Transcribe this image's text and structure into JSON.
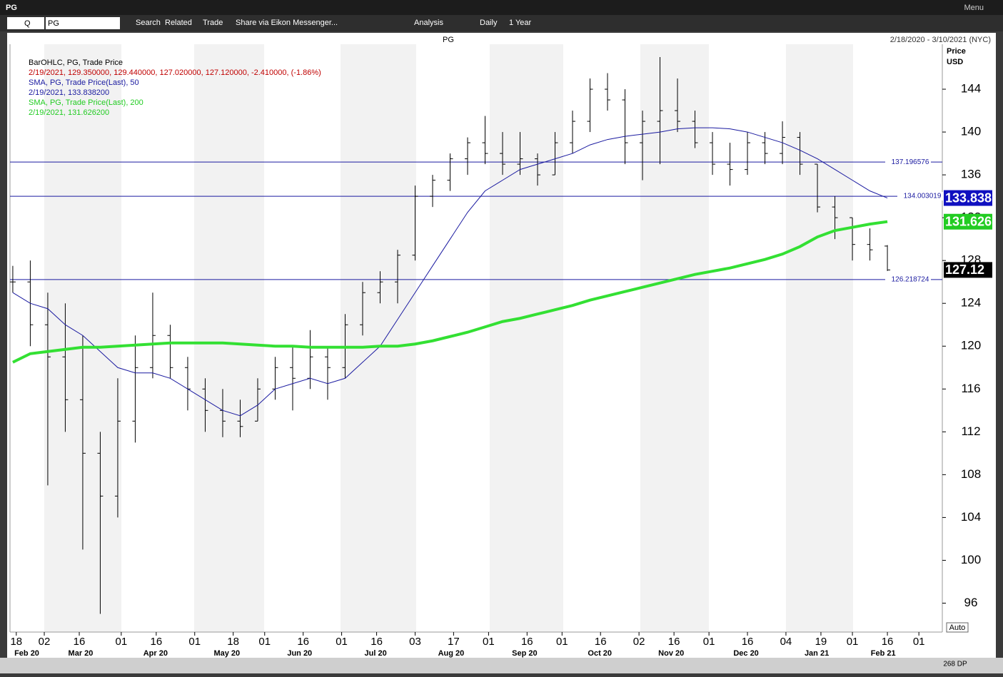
{
  "app": {
    "window_title": "PG",
    "menu": "Menu",
    "toolbar": {
      "ric": "PG",
      "q": "Q",
      "items": [
        "Search",
        "Related",
        "Trade",
        "Share via Eikon Messenger...",
        "Analysis",
        "Daily",
        "1 Year"
      ]
    }
  },
  "chart_data": {
    "type": "ohlc",
    "title": "PG",
    "date_range": "2/18/2020 - 3/10/2021 (NYC)",
    "y_axis_label": [
      "Price",
      "USD"
    ],
    "legend": [
      {
        "text": "BarOHLC, PG, Trade Price",
        "color": "#000000"
      },
      {
        "text": "2/19/2021, 129.350000, 129.440000, 127.020000, 127.120000, -2.410000, (-1.86%)",
        "color": "#c00000"
      },
      {
        "text": "SMA, PG, Trade Price(Last),  50",
        "color": "#1a1aa0"
      },
      {
        "text": "2/19/2021, 133.838200",
        "color": "#1a1aa0"
      },
      {
        "text": "SMA, PG, Trade Price(Last),  200",
        "color": "#22cc22"
      },
      {
        "text": "2/19/2021, 131.626200",
        "color": "#22cc22"
      }
    ],
    "x": [
      0,
      5,
      10,
      15,
      20,
      25,
      30,
      35,
      40,
      45,
      50,
      55,
      60,
      65,
      70,
      75,
      80,
      85,
      90,
      95,
      100,
      105,
      110,
      115,
      120,
      125,
      130,
      135,
      140,
      145,
      150,
      155,
      160,
      165,
      170,
      175,
      180,
      185,
      190,
      195,
      200,
      205,
      210,
      215,
      220,
      225,
      230,
      235,
      240,
      245,
      250
    ],
    "open": [
      126,
      126,
      122,
      119,
      115,
      110,
      106,
      113,
      118,
      121,
      118,
      116,
      114,
      113,
      113,
      116,
      118,
      117,
      119,
      118,
      122,
      125,
      126,
      128.5,
      134,
      135.5,
      137.5,
      139,
      138,
      137,
      137.5,
      136,
      139,
      141,
      144,
      143,
      139,
      141,
      142,
      141,
      139,
      137,
      136.5,
      139,
      138,
      139.5,
      137,
      133,
      132,
      129.5,
      129.35
    ],
    "high": [
      127.5,
      128,
      125,
      124,
      121,
      112,
      117,
      121,
      125,
      122,
      119,
      117,
      116,
      115,
      117,
      119,
      120,
      121.5,
      120,
      123,
      126,
      127,
      129,
      135,
      136,
      138,
      139.5,
      141.5,
      140,
      140,
      138,
      140,
      142,
      145,
      145.5,
      144,
      142,
      147,
      145,
      142,
      140,
      139,
      140,
      140,
      141,
      140,
      137,
      134,
      132,
      131,
      129.44
    ],
    "low": [
      125,
      120,
      107,
      112,
      101,
      95,
      104,
      111,
      117,
      117,
      114,
      112,
      111.5,
      111.5,
      113,
      115,
      114,
      116,
      115,
      117,
      121,
      124,
      124,
      128,
      133,
      134.5,
      136,
      137,
      136,
      136,
      135,
      136,
      138,
      140,
      142,
      137,
      135.5,
      137,
      140,
      138.5,
      136,
      135,
      136,
      137,
      137,
      136,
      132.5,
      130,
      128,
      128,
      127.02
    ],
    "close": [
      126,
      122,
      119,
      115,
      110,
      106,
      113,
      118,
      121,
      118,
      116,
      114,
      113,
      112.5,
      116,
      118,
      117,
      119,
      118,
      122,
      125,
      126,
      128.5,
      134,
      135.5,
      137.5,
      139,
      138,
      137,
      137.5,
      136,
      139,
      141,
      144,
      143,
      139,
      141,
      142,
      141,
      139,
      137,
      136.5,
      139,
      138,
      139.5,
      137,
      133,
      132,
      129.5,
      129,
      127.12
    ],
    "ohlc_color": "#000000",
    "series": [
      {
        "name": "SMA, PG, Trade Price(Last),  50",
        "color": "#1a1aa0",
        "width": 1,
        "values": [
          125,
          124,
          123.5,
          122,
          121,
          119.5,
          118,
          117.5,
          117.5,
          117,
          116,
          115,
          114,
          113.5,
          114.5,
          116,
          116.5,
          117,
          116.5,
          117,
          118.5,
          120,
          122.5,
          125,
          127.5,
          130,
          132.5,
          134.5,
          135.5,
          136.5,
          137,
          137.5,
          138,
          138.8,
          139.3,
          139.6,
          139.8,
          140,
          140.3,
          140.4,
          140.4,
          140.3,
          140,
          139.5,
          139,
          138.3,
          137.5,
          136.5,
          135.5,
          134.5,
          133.84
        ]
      },
      {
        "name": "SMA, PG, Trade Price(Last),  200",
        "color": "#33e033",
        "width": 4,
        "values": [
          118.5,
          119.3,
          119.5,
          119.7,
          119.9,
          119.9,
          120,
          120.1,
          120.2,
          120.3,
          120.3,
          120.3,
          120.3,
          120.2,
          120.1,
          120,
          120,
          119.9,
          119.9,
          119.9,
          119.9,
          120,
          120,
          120.2,
          120.5,
          120.9,
          121.3,
          121.8,
          122.3,
          122.6,
          123,
          123.4,
          123.8,
          124.3,
          124.7,
          125.1,
          125.5,
          125.9,
          126.3,
          126.7,
          127,
          127.3,
          127.7,
          128.1,
          128.6,
          129.3,
          130.2,
          130.8,
          131.1,
          131.4,
          131.63
        ]
      }
    ],
    "levels": [
      137.196576,
      134.003019,
      126.218724
    ],
    "level_color": "#1a1aa0",
    "price_boxes": [
      {
        "value": 133.838,
        "color": "#1010c0"
      },
      {
        "value": 131.626,
        "color": "#22cc22"
      },
      {
        "value": 127.12,
        "color": "#000000"
      }
    ],
    "ylim": [
      93.3,
      148.2
    ],
    "yticks": [
      96,
      100,
      104,
      108,
      112,
      116,
      120,
      124,
      128,
      132,
      136,
      140,
      144
    ],
    "xlim": [
      -0.8,
      265.7
    ],
    "xticks": [
      {
        "value": 1,
        "label": "18"
      },
      {
        "value": 9,
        "label": "02"
      },
      {
        "value": 19,
        "label": "16"
      },
      {
        "value": 31,
        "label": "01"
      },
      {
        "value": 41,
        "label": "16"
      },
      {
        "value": 52,
        "label": "01"
      },
      {
        "value": 63,
        "label": "18"
      },
      {
        "value": 72,
        "label": "01"
      },
      {
        "value": 83,
        "label": "16"
      },
      {
        "value": 94,
        "label": "01"
      },
      {
        "value": 104,
        "label": "16"
      },
      {
        "value": 115,
        "label": "03"
      },
      {
        "value": 126,
        "label": "17"
      },
      {
        "value": 136,
        "label": "01"
      },
      {
        "value": 147,
        "label": "16"
      },
      {
        "value": 157,
        "label": "01"
      },
      {
        "value": 168,
        "label": "16"
      },
      {
        "value": 179,
        "label": "02"
      },
      {
        "value": 189,
        "label": "16"
      },
      {
        "value": 199,
        "label": "01"
      },
      {
        "value": 210,
        "label": "16"
      },
      {
        "value": 221,
        "label": "04"
      },
      {
        "value": 231,
        "label": "19"
      },
      {
        "value": 240,
        "label": "01"
      },
      {
        "value": 250,
        "label": "16"
      },
      {
        "value": 259,
        "label": "01"
      }
    ],
    "month_labels": [
      {
        "value": 4,
        "label": "Feb 20"
      },
      {
        "value": 19.4,
        "label": "Mar 20"
      },
      {
        "value": 40.8,
        "label": "Apr 20"
      },
      {
        "value": 61.2,
        "label": "May 20"
      },
      {
        "value": 82,
        "label": "Jun 20"
      },
      {
        "value": 103.7,
        "label": "Jul 20"
      },
      {
        "value": 125.3,
        "label": "Aug 20"
      },
      {
        "value": 146.3,
        "label": "Sep 20"
      },
      {
        "value": 167.8,
        "label": "Oct 20"
      },
      {
        "value": 188.2,
        "label": "Nov 20"
      },
      {
        "value": 209.6,
        "label": "Dec 20"
      },
      {
        "value": 229.8,
        "label": "Jan 21"
      },
      {
        "value": 248.8,
        "label": "Feb 21"
      }
    ],
    "auto": "Auto",
    "dp": "268 DP"
  }
}
